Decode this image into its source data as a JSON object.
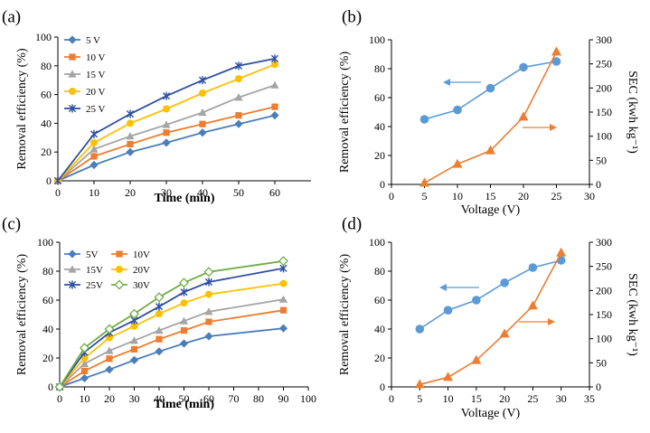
{
  "colors": {
    "blue": "#4a7ebb",
    "orange": "#ed7d31",
    "gray": "#a5a5a5",
    "yellow": "#ffc000",
    "navy": "#2e4fa3",
    "green": "#70ad47",
    "point_blue": "#5b9bd5",
    "axis": "#595959"
  },
  "chart_data": [
    {
      "panel": "(a)",
      "type": "line",
      "xlabel": "Time (min)",
      "ylabel": "Removal efficiency (%)",
      "xlim": [
        0,
        70
      ],
      "ylim": [
        0,
        100
      ],
      "xticks": [
        0,
        10,
        20,
        30,
        40,
        50,
        60
      ],
      "yticks": [
        0,
        20,
        40,
        60,
        80,
        100
      ],
      "x": [
        0,
        10,
        20,
        30,
        40,
        50,
        60
      ],
      "legend_position": "top-left",
      "series": [
        {
          "name": "5 V",
          "marker": "diamond",
          "values": [
            0,
            11,
            20,
            26.5,
            33.5,
            39.5,
            45.5
          ]
        },
        {
          "name": "10 V",
          "marker": "square",
          "values": [
            0,
            17,
            25.5,
            33.5,
            39.5,
            45.5,
            51.5
          ]
        },
        {
          "name": "15 V",
          "marker": "triangle",
          "values": [
            0,
            22,
            31,
            39,
            47.5,
            58,
            66.5
          ]
        },
        {
          "name": "20 V",
          "marker": "circle",
          "values": [
            0,
            26.5,
            40,
            50,
            61,
            71,
            81
          ]
        },
        {
          "name": "25 V",
          "marker": "star",
          "values": [
            0,
            32.5,
            46.5,
            59,
            70,
            80,
            85
          ]
        }
      ]
    },
    {
      "panel": "(b)",
      "type": "line",
      "xlabel": "Voltage (V)",
      "ylabel": "Removal efficiency (%)",
      "y2label": "SEC (kwh kg⁻¹)",
      "xlim": [
        0,
        30
      ],
      "ylim": [
        0,
        100
      ],
      "y2lim": [
        0,
        300
      ],
      "xticks": [
        0,
        5,
        10,
        15,
        20,
        25,
        30
      ],
      "yticks": [
        0,
        20,
        40,
        60,
        80,
        100
      ],
      "y2ticks": [
        0,
        50,
        100,
        150,
        200,
        250,
        300
      ],
      "x": [
        5,
        10,
        15,
        20,
        25
      ],
      "series": [
        {
          "name": "Removal efficiency",
          "axis": "left",
          "marker": "circle",
          "values": [
            45,
            51.5,
            66.5,
            81,
            85
          ]
        },
        {
          "name": "SEC",
          "axis": "right",
          "marker": "triangle",
          "values": [
            3,
            42,
            70,
            140,
            275
          ]
        }
      ]
    },
    {
      "panel": "(c)",
      "type": "line",
      "xlabel": "Time (min)",
      "ylabel": "Removal efficiency (%)",
      "xlim": [
        0,
        100
      ],
      "ylim": [
        0,
        100
      ],
      "xticks": [
        0,
        10,
        20,
        30,
        40,
        50,
        60,
        70,
        80,
        90,
        100
      ],
      "yticks": [
        0,
        20,
        40,
        60,
        80,
        100
      ],
      "x": [
        0,
        10,
        20,
        30,
        40,
        50,
        60,
        90
      ],
      "legend_position": "top-left",
      "series": [
        {
          "name": "5V",
          "marker": "diamond",
          "values": [
            0,
            6,
            12,
            18.5,
            24.5,
            30,
            35,
            40.5
          ]
        },
        {
          "name": "10V",
          "marker": "square",
          "values": [
            0,
            11,
            19.5,
            26,
            33,
            39,
            45,
            53
          ]
        },
        {
          "name": "15V",
          "marker": "triangle",
          "values": [
            0,
            16,
            25,
            32,
            39,
            45.5,
            52,
            60.5
          ]
        },
        {
          "name": "20V",
          "marker": "circle",
          "values": [
            0,
            20,
            34,
            42,
            50.5,
            58,
            64,
            71.5
          ]
        },
        {
          "name": "25V",
          "marker": "star",
          "values": [
            0,
            24,
            37.5,
            46,
            55.5,
            65.5,
            72.5,
            82
          ]
        },
        {
          "name": "30V",
          "marker": "open-diamond",
          "values": [
            0,
            27,
            40,
            50.5,
            62,
            72,
            79.5,
            87
          ]
        }
      ]
    },
    {
      "panel": "(d)",
      "type": "line",
      "xlabel": "Voltage (V)",
      "ylabel": "Removal efficiency (%)",
      "y2label": "SEC (kwh kg⁻¹)",
      "xlim": [
        0,
        35
      ],
      "ylim": [
        0,
        100
      ],
      "y2lim": [
        0,
        300
      ],
      "xticks": [
        0,
        5,
        10,
        15,
        20,
        25,
        30,
        35
      ],
      "yticks": [
        0,
        20,
        40,
        60,
        80,
        100
      ],
      "y2ticks": [
        0,
        50,
        100,
        150,
        200,
        250,
        300
      ],
      "x": [
        5,
        10,
        15,
        20,
        25,
        30
      ],
      "series": [
        {
          "name": "Removal efficiency",
          "axis": "left",
          "marker": "circle",
          "values": [
            40,
            53,
            60,
            72,
            82.5,
            87.5
          ]
        },
        {
          "name": "SEC",
          "axis": "right",
          "marker": "triangle",
          "values": [
            5,
            20,
            55,
            110,
            168,
            278
          ]
        }
      ]
    }
  ]
}
